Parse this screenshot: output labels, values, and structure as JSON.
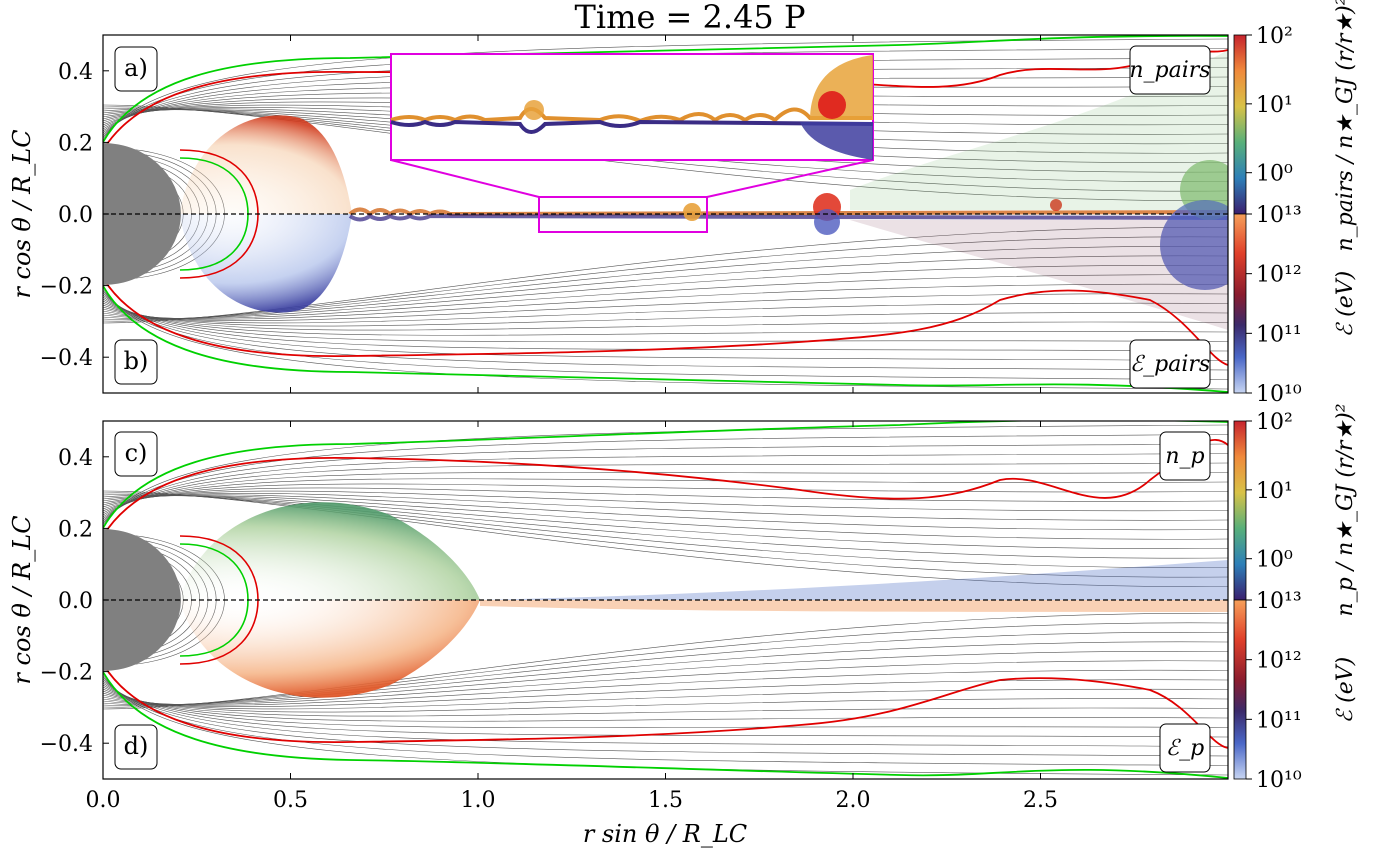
{
  "figure": {
    "title": "Time = 2.45 P"
  },
  "chart_data": [
    {
      "type": "heatmap",
      "panel": "top",
      "xlabel": "",
      "ylabel": "r cos θ / R_LC",
      "xlim": [
        0.0,
        3.0
      ],
      "ylim": [
        -0.5,
        0.5
      ],
      "xticks": [
        "0.0",
        "0.5",
        "1.0",
        "1.5",
        "2.0",
        "2.5"
      ],
      "yticks": [
        "0.4",
        "0.2",
        "0.0",
        "−0.2",
        "−0.4"
      ],
      "upper_tag": "a)",
      "lower_tag": "b)",
      "upper_label": "n_pairs",
      "lower_label": "ℰ_pairs",
      "inset": {
        "x_range": [
          1.15,
          1.6
        ],
        "y_range": [
          -0.05,
          0.05
        ]
      }
    },
    {
      "type": "heatmap",
      "panel": "bottom",
      "xlabel": "r sin θ / R_LC",
      "ylabel": "r cos θ / R_LC",
      "xlim": [
        0.0,
        3.0
      ],
      "ylim": [
        -0.5,
        0.5
      ],
      "xticks": [
        "0.0",
        "0.5",
        "1.0",
        "1.5",
        "2.0",
        "2.5"
      ],
      "yticks": [
        "0.4",
        "0.2",
        "0.0",
        "−0.2",
        "−0.4"
      ],
      "upper_tag": "c)",
      "lower_tag": "d)",
      "upper_label": "n_p",
      "lower_label": "ℰ_p"
    }
  ],
  "colorbars": {
    "top_density_label": "n_pairs / n★_GJ (r/r★)²",
    "bottom_density_label": "n_p / n★_GJ (r/r★)²",
    "energy_label": "ℰ (eV)",
    "density_ticks": [
      "10²",
      "10¹",
      "10⁰"
    ],
    "energy_ticks": [
      "10¹³",
      "10¹²",
      "10¹¹",
      "10¹⁰"
    ],
    "density_colors": [
      "#d7191c",
      "#f4a63a",
      "#c8c83a",
      "#5ab07a",
      "#2b83ba",
      "#3b2a7a"
    ],
    "energy_colors": [
      "#f5934a",
      "#d7301f",
      "#7a1d33",
      "#3b3f9a",
      "#6f8fd6",
      "#c6d4f1"
    ]
  },
  "colors": {
    "separatrix": "#e00000",
    "last_open": "#00e000",
    "star": "#808080",
    "inset_frame": "#e000e0"
  }
}
